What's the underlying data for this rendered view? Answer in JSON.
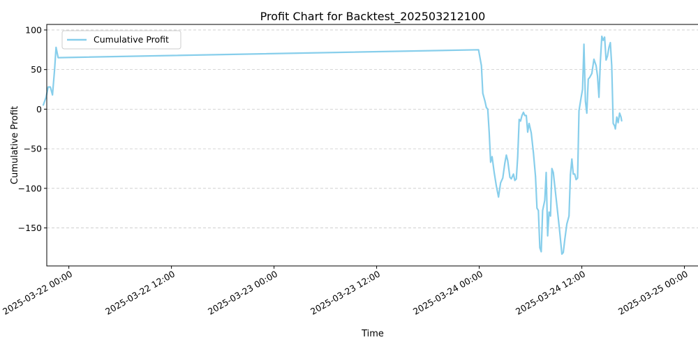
{
  "chart_data": {
    "type": "line",
    "title": "Profit Chart for Backtest_202503212100",
    "xlabel": "Time",
    "ylabel": "Cumulative Profit",
    "xlim": [
      "2025-03-21T21:25",
      "2025-03-25T01:45"
    ],
    "ylim": [
      -198,
      107
    ],
    "grid": {
      "y": true,
      "x": false,
      "style": "dashed"
    },
    "legend_position": "top-left",
    "x_ticks": [
      {
        "value": "2025-03-22T00:00",
        "label": "2025-03-22 00:00"
      },
      {
        "value": "2025-03-22T12:00",
        "label": "2025-03-22 12:00"
      },
      {
        "value": "2025-03-23T00:00",
        "label": "2025-03-23 00:00"
      },
      {
        "value": "2025-03-23T12:00",
        "label": "2025-03-23 12:00"
      },
      {
        "value": "2025-03-24T00:00",
        "label": "2025-03-24 00:00"
      },
      {
        "value": "2025-03-24T12:00",
        "label": "2025-03-24 12:00"
      },
      {
        "value": "2025-03-25T00:00",
        "label": "2025-03-25 00:00"
      }
    ],
    "y_ticks": [
      {
        "value": 100,
        "label": "100"
      },
      {
        "value": 50,
        "label": "50"
      },
      {
        "value": 0,
        "label": "0"
      },
      {
        "value": -50,
        "label": "−50"
      },
      {
        "value": -100,
        "label": "−100"
      },
      {
        "value": -150,
        "label": "−150"
      }
    ],
    "series": [
      {
        "name": "Cumulative Profit",
        "color": "#87CEEB",
        "points": [
          [
            "2025-03-21T21:00",
            5
          ],
          [
            "2025-03-21T21:20",
            15
          ],
          [
            "2025-03-21T21:35",
            28
          ],
          [
            "2025-03-21T21:50",
            28
          ],
          [
            "2025-03-21T22:05",
            18
          ],
          [
            "2025-03-21T22:20",
            50
          ],
          [
            "2025-03-21T22:30",
            78
          ],
          [
            "2025-03-21T22:45",
            65
          ],
          [
            "2025-03-23T23:55",
            75
          ],
          [
            "2025-03-24T00:15",
            55
          ],
          [
            "2025-03-24T00:25",
            20
          ],
          [
            "2025-03-24T00:40",
            10
          ],
          [
            "2025-03-24T00:50",
            2
          ],
          [
            "2025-03-24T01:00",
            0
          ],
          [
            "2025-03-24T01:10",
            -30
          ],
          [
            "2025-03-24T01:20",
            -67
          ],
          [
            "2025-03-24T01:30",
            -60
          ],
          [
            "2025-03-24T01:45",
            -80
          ],
          [
            "2025-03-24T02:00",
            -97
          ],
          [
            "2025-03-24T02:15",
            -111
          ],
          [
            "2025-03-24T02:30",
            -93
          ],
          [
            "2025-03-24T02:45",
            -87
          ],
          [
            "2025-03-24T03:00",
            -68
          ],
          [
            "2025-03-24T03:10",
            -58
          ],
          [
            "2025-03-24T03:20",
            -65
          ],
          [
            "2025-03-24T03:35",
            -86
          ],
          [
            "2025-03-24T03:45",
            -88
          ],
          [
            "2025-03-24T04:00",
            -82
          ],
          [
            "2025-03-24T04:10",
            -90
          ],
          [
            "2025-03-24T04:20",
            -88
          ],
          [
            "2025-03-24T04:30",
            -60
          ],
          [
            "2025-03-24T04:40",
            -13
          ],
          [
            "2025-03-24T04:50",
            -15
          ],
          [
            "2025-03-24T05:00",
            -8
          ],
          [
            "2025-03-24T05:10",
            -4
          ],
          [
            "2025-03-24T05:20",
            -8
          ],
          [
            "2025-03-24T05:30",
            -8
          ],
          [
            "2025-03-24T05:40",
            -29
          ],
          [
            "2025-03-24T05:50",
            -18
          ],
          [
            "2025-03-24T06:05",
            -30
          ],
          [
            "2025-03-24T06:20",
            -55
          ],
          [
            "2025-03-24T06:35",
            -85
          ],
          [
            "2025-03-24T06:45",
            -125
          ],
          [
            "2025-03-24T06:55",
            -128
          ],
          [
            "2025-03-24T07:05",
            -175
          ],
          [
            "2025-03-24T07:15",
            -180
          ],
          [
            "2025-03-24T07:25",
            -128
          ],
          [
            "2025-03-24T07:40",
            -115
          ],
          [
            "2025-03-24T07:50",
            -80
          ],
          [
            "2025-03-24T08:00",
            -160
          ],
          [
            "2025-03-24T08:10",
            -130
          ],
          [
            "2025-03-24T08:20",
            -135
          ],
          [
            "2025-03-24T08:30",
            -75
          ],
          [
            "2025-03-24T08:40",
            -80
          ],
          [
            "2025-03-24T08:55",
            -105
          ],
          [
            "2025-03-24T09:10",
            -130
          ],
          [
            "2025-03-24T09:25",
            -155
          ],
          [
            "2025-03-24T09:40",
            -183
          ],
          [
            "2025-03-24T09:50",
            -181
          ],
          [
            "2025-03-24T10:00",
            -165
          ],
          [
            "2025-03-24T10:15",
            -145
          ],
          [
            "2025-03-24T10:30",
            -135
          ],
          [
            "2025-03-24T10:40",
            -83
          ],
          [
            "2025-03-24T10:50",
            -63
          ],
          [
            "2025-03-24T11:00",
            -82
          ],
          [
            "2025-03-24T11:10",
            -82
          ],
          [
            "2025-03-24T11:20",
            -89
          ],
          [
            "2025-03-24T11:30",
            -87
          ],
          [
            "2025-03-24T11:40",
            -2
          ],
          [
            "2025-03-24T11:55",
            15
          ],
          [
            "2025-03-24T12:05",
            25
          ],
          [
            "2025-03-24T12:15",
            82
          ],
          [
            "2025-03-24T12:25",
            10
          ],
          [
            "2025-03-24T12:35",
            -5
          ],
          [
            "2025-03-24T12:45",
            38
          ],
          [
            "2025-03-24T12:55",
            40
          ],
          [
            "2025-03-24T13:10",
            45
          ],
          [
            "2025-03-24T13:25",
            63
          ],
          [
            "2025-03-24T13:40",
            55
          ],
          [
            "2025-03-24T13:50",
            42
          ],
          [
            "2025-03-24T14:00",
            15
          ],
          [
            "2025-03-24T14:10",
            60
          ],
          [
            "2025-03-24T14:20",
            92
          ],
          [
            "2025-03-24T14:30",
            87
          ],
          [
            "2025-03-24T14:40",
            91
          ],
          [
            "2025-03-24T14:50",
            62
          ],
          [
            "2025-03-24T15:00",
            67
          ],
          [
            "2025-03-24T15:10",
            78
          ],
          [
            "2025-03-24T15:20",
            84
          ],
          [
            "2025-03-24T15:30",
            55
          ],
          [
            "2025-03-24T15:40",
            -18
          ],
          [
            "2025-03-24T15:50",
            -21
          ],
          [
            "2025-03-24T15:55",
            -25
          ],
          [
            "2025-03-24T16:05",
            -10
          ],
          [
            "2025-03-24T16:15",
            -17
          ],
          [
            "2025-03-24T16:25",
            -5
          ],
          [
            "2025-03-24T16:35",
            -10
          ],
          [
            "2025-03-24T16:40",
            -15
          ]
        ]
      }
    ]
  }
}
